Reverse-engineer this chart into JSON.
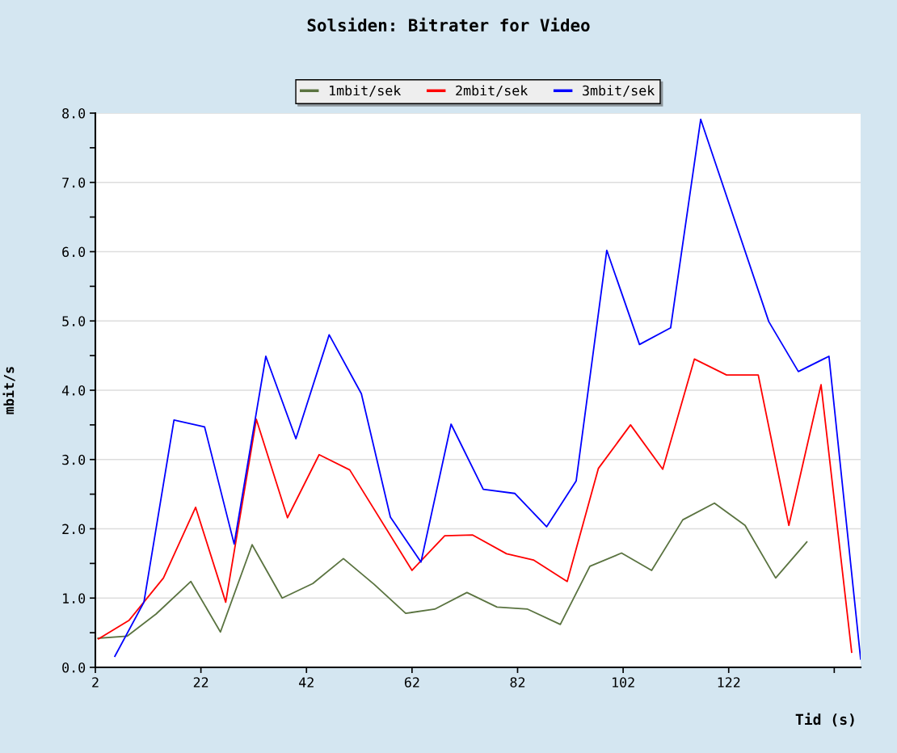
{
  "chart_data": {
    "type": "line",
    "title": "Solsiden: Bitrater for Video",
    "xlabel": "Tid (s)",
    "ylabel": "mbit/s",
    "xlim": [
      2,
      147
    ],
    "ylim": [
      0,
      8
    ],
    "xticks": [
      2,
      22,
      42,
      62,
      82,
      102,
      122,
      {
        "value": 142,
        "label": null
      }
    ],
    "yticks": [
      {
        "value": 0,
        "label": "0.0"
      },
      {
        "value": 0.5,
        "label": null
      },
      {
        "value": 1,
        "label": "1.0"
      },
      {
        "value": 1.5,
        "label": null
      },
      {
        "value": 2,
        "label": "2.0"
      },
      {
        "value": 2.5,
        "label": null
      },
      {
        "value": 3,
        "label": "3.0"
      },
      {
        "value": 3.5,
        "label": null
      },
      {
        "value": 4,
        "label": "4.0"
      },
      {
        "value": 4.5,
        "label": null
      },
      {
        "value": 5,
        "label": "5.0"
      },
      {
        "value": 5.5,
        "label": null
      },
      {
        "value": 6,
        "label": "6.0"
      },
      {
        "value": 6.5,
        "label": null
      },
      {
        "value": 7,
        "label": "7.0"
      },
      {
        "value": 7.5,
        "label": null
      },
      {
        "value": 8,
        "label": "8.0"
      }
    ],
    "grid": "y",
    "legend": "top",
    "marker": "none",
    "line_style": "solid",
    "series": [
      {
        "name": "1mbit/sek",
        "color": "#5a7340",
        "x": [
          2.5,
          8.0,
          13.5,
          20.1,
          25.7,
          31.7,
          37.4,
          43.2,
          49.0,
          54.8,
          60.8,
          66.3,
          72.4,
          78.1,
          83.9,
          90.1,
          95.7,
          101.7,
          107.4,
          113.3,
          119.3,
          125.1,
          130.9,
          136.8
        ],
        "values": [
          0.42,
          0.45,
          0.77,
          1.24,
          0.51,
          1.77,
          1.0,
          1.21,
          1.57,
          1.2,
          0.78,
          0.84,
          1.08,
          0.87,
          0.84,
          0.62,
          1.46,
          1.65,
          1.4,
          2.13,
          2.37,
          2.05,
          1.29,
          1.81
        ]
      },
      {
        "name": "2mbit/sek",
        "color": "#ff0000",
        "x": [
          2.6,
          8.4,
          14.9,
          21.0,
          26.7,
          32.5,
          38.4,
          44.4,
          50.2,
          62.0,
          68.2,
          73.5,
          79.9,
          85.0,
          91.4,
          97.3,
          103.4,
          109.5,
          115.5,
          121.6,
          127.6,
          133.4,
          139.5,
          145.3
        ],
        "values": [
          0.41,
          0.68,
          1.29,
          2.31,
          0.94,
          3.58,
          2.16,
          3.07,
          2.85,
          1.4,
          1.9,
          1.91,
          1.64,
          1.55,
          1.24,
          2.87,
          3.5,
          2.86,
          4.45,
          4.22,
          4.22,
          2.05,
          4.08,
          0.22
        ]
      },
      {
        "name": "3mbit/sek",
        "color": "#0000ff",
        "x": [
          5.7,
          11.2,
          16.9,
          22.7,
          28.3,
          34.3,
          40.0,
          46.3,
          52.4,
          57.9,
          63.7,
          69.4,
          75.5,
          81.5,
          87.5,
          93.1,
          98.9,
          105.1,
          111.0,
          116.7,
          129.6,
          135.2,
          141.0,
          147.0
        ],
        "values": [
          0.16,
          0.94,
          3.57,
          3.47,
          1.78,
          4.49,
          3.3,
          4.8,
          3.95,
          2.17,
          1.52,
          3.51,
          2.57,
          2.51,
          2.03,
          2.69,
          6.02,
          4.66,
          4.9,
          7.91,
          4.99,
          4.27,
          4.49,
          0.12
        ]
      }
    ]
  }
}
